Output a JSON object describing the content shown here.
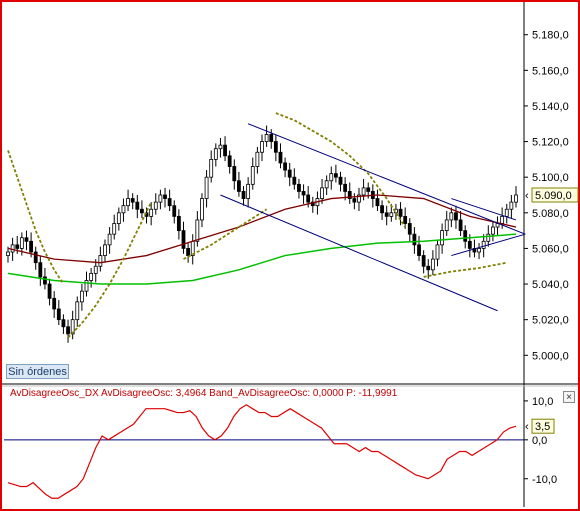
{
  "ui": {
    "orders_button": "Sin órdenes",
    "close_symbol": "×"
  },
  "colors": {
    "frame": "#e00000",
    "axis": "#000000",
    "candles": "#000000",
    "channel": "#00007a",
    "ma_long": "#00c000",
    "ma_mid": "#800000",
    "band_dotted": "#808000",
    "oscillator": "#e00000",
    "zero_line": "#000080",
    "price_box_border": "#808000"
  },
  "chart_data": [
    {
      "type": "candlestick",
      "ylim": [
        4985,
        5195
      ],
      "y_ticks": [
        "5.000,0",
        "5.020,0",
        "5.040,0",
        "5.060,0",
        "5.080,0",
        "5.100,0",
        "5.120,0",
        "5.140,0",
        "5.160,0",
        "5.180,0"
      ],
      "y_tick_values": [
        5000,
        5020,
        5040,
        5060,
        5080,
        5100,
        5120,
        5140,
        5160,
        5180
      ],
      "last_price_label": "5.090,0",
      "last_price_value": 5090,
      "closes": [
        5058,
        5062,
        5060,
        5066,
        5064,
        5058,
        5052,
        5044,
        5040,
        5032,
        5026,
        5020,
        5016,
        5012,
        5020,
        5030,
        5036,
        5042,
        5046,
        5050,
        5056,
        5062,
        5068,
        5074,
        5080,
        5084,
        5088,
        5086,
        5082,
        5080,
        5078,
        5082,
        5086,
        5090,
        5088,
        5084,
        5078,
        5070,
        5060,
        5056,
        5064,
        5076,
        5088,
        5100,
        5110,
        5116,
        5118,
        5112,
        5106,
        5098,
        5092,
        5088,
        5096,
        5106,
        5114,
        5120,
        5124,
        5120,
        5114,
        5108,
        5104,
        5100,
        5096,
        5092,
        5090,
        5086,
        5084,
        5088,
        5094,
        5098,
        5102,
        5100,
        5096,
        5092,
        5088,
        5086,
        5090,
        5094,
        5092,
        5088,
        5084,
        5080,
        5078,
        5080,
        5082,
        5078,
        5074,
        5068,
        5062,
        5056,
        5050,
        5048,
        5054,
        5062,
        5070,
        5076,
        5080,
        5076,
        5070,
        5064,
        5060,
        5058,
        5060,
        5064,
        5068,
        5072,
        5074,
        5078,
        5082,
        5086,
        5090
      ],
      "ma_long": {
        "x": [
          0,
          10,
          20,
          30,
          40,
          50,
          60,
          70,
          80,
          90,
          100,
          110
        ],
        "values": [
          5046,
          5042,
          5040,
          5040,
          5042,
          5048,
          5056,
          5060,
          5063,
          5064,
          5066,
          5068
        ]
      },
      "ma_mid": {
        "x": [
          0,
          10,
          20,
          30,
          40,
          50,
          60,
          70,
          80,
          90,
          100,
          110
        ],
        "values": [
          5060,
          5054,
          5052,
          5056,
          5064,
          5072,
          5082,
          5088,
          5090,
          5088,
          5078,
          5072
        ]
      },
      "band_upper": {
        "x": [
          0,
          2,
          4,
          6,
          8,
          10,
          12
        ],
        "values": [
          5115,
          5100,
          5085,
          5070,
          5058,
          5048,
          5040
        ]
      },
      "band_lower": {
        "x": [
          13,
          16,
          19,
          22,
          25,
          28,
          31
        ],
        "values": [
          5010,
          5018,
          5028,
          5040,
          5054,
          5070,
          5086
        ]
      },
      "band_upper2": {
        "x": [
          58,
          62,
          66,
          70,
          74,
          78,
          82,
          86
        ],
        "values": [
          5136,
          5132,
          5126,
          5120,
          5112,
          5102,
          5088,
          5072
        ]
      },
      "band_lower2": {
        "x": [
          38,
          44,
          50,
          56
        ],
        "values": [
          5054,
          5062,
          5072,
          5082
        ]
      },
      "band_lower3": {
        "x": [
          90,
          96,
          102,
          108
        ],
        "values": [
          5044,
          5047,
          5049,
          5052
        ]
      },
      "channel_upper": {
        "x": [
          52,
          112
        ],
        "values": [
          5130,
          5068
        ]
      },
      "channel_lower": {
        "x": [
          46,
          106
        ],
        "values": [
          5090,
          5025
        ]
      },
      "triangle_upper": {
        "x": [
          96,
          110
        ],
        "values": [
          5088,
          5076
        ]
      },
      "triangle_lower": {
        "x": [
          96,
          112
        ],
        "values": [
          5056,
          5068
        ]
      }
    },
    {
      "type": "line",
      "title": "AvDisagreeOsc_DX",
      "series": [
        {
          "name": "AvDisagreeOsc",
          "last": "3,4964"
        },
        {
          "name": "Band_AvDisagreeOsc",
          "last": "0,0000"
        },
        {
          "name": "P",
          "last": "-11,9991"
        }
      ],
      "legend_text": "AvDisagreeOsc_DX  AvDisagreeOsc: 3,4964  Band_AvDisagreeOsc: 0,0000  P: -11,9991",
      "ylim": [
        -17,
        11
      ],
      "y_ticks": [
        "10,0",
        "0,0",
        "-10,0"
      ],
      "y_tick_values": [
        10,
        0,
        -10
      ],
      "last_value_label": "3,5",
      "last_value": 3.5,
      "values": [
        -11,
        -11.5,
        -12,
        -12,
        -11,
        -12.5,
        -14,
        -15,
        -15,
        -14,
        -13,
        -12,
        -10,
        -6,
        -2,
        1,
        0,
        1,
        2,
        3,
        4,
        6,
        8,
        8,
        8,
        8,
        7.5,
        7,
        7,
        7.5,
        6,
        3,
        1,
        0,
        1,
        3,
        6,
        8,
        9,
        8,
        7,
        7,
        6,
        6,
        7,
        8,
        7,
        6,
        5,
        4,
        3,
        1,
        -1,
        -1,
        -1,
        -2,
        -3,
        -2,
        -3,
        -3,
        -4,
        -5,
        -6,
        -7,
        -8,
        -9,
        -9.5,
        -10,
        -9,
        -8,
        -5,
        -4,
        -3,
        -3,
        -4,
        -3,
        -2,
        -1,
        0,
        2,
        3,
        3.5
      ]
    }
  ]
}
